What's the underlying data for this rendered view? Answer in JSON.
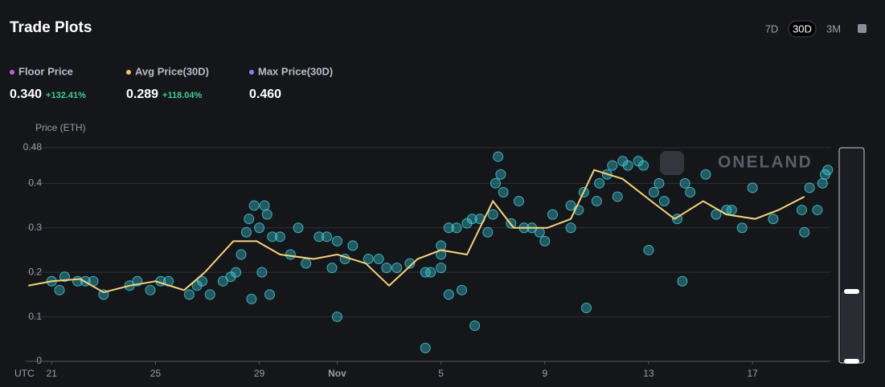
{
  "header": {
    "title": "Trade Plots",
    "ranges": [
      "7D",
      "30D",
      "3M"
    ],
    "selected_range": "30D"
  },
  "stats": [
    {
      "label": "Floor Price",
      "value": "0.340",
      "change": "+132.41%",
      "dot_color": "#c85bd6"
    },
    {
      "label": "Avg Price(30D)",
      "value": "0.289",
      "change": "+118.04%",
      "dot_color": "#f2c46d"
    },
    {
      "label": "Max Price(30D)",
      "value": "0.460",
      "dot_color": "#8b7cf0"
    }
  ],
  "watermark": "ONELAND",
  "chart_data": {
    "type": "scatter",
    "y_axis_label": "Price (ETH)",
    "x_axis_prefix": "UTC",
    "xlim": [
      20,
      51
    ],
    "xticks": [
      21,
      25,
      29,
      {
        "value": 32,
        "label": "Nov"
      },
      {
        "value": 36,
        "label": "5"
      },
      {
        "value": 40,
        "label": "9"
      },
      {
        "value": 44,
        "label": "13"
      },
      {
        "value": 48,
        "label": "17"
      }
    ],
    "ylim": [
      0,
      0.48
    ],
    "yticks": [
      0,
      0.1,
      0.2,
      0.3,
      0.4,
      0.48
    ],
    "grid": true,
    "series": [
      {
        "type": "scatter",
        "color": "#3fd3e3",
        "x": [
          21,
          21.3,
          21.5,
          22,
          22.3,
          22.6,
          23,
          24,
          24.3,
          24.8,
          25.2,
          25.5,
          26.3,
          26.6,
          26.8,
          27.1,
          27.6,
          27.9,
          28.1,
          28.3,
          28.5,
          28.6,
          28.7,
          28.8,
          29,
          29.2,
          29.3,
          29.1,
          29.4,
          29.5,
          29.8,
          30.2,
          30.5,
          30.8,
          31.3,
          31.6,
          31.8,
          32,
          32,
          32.3,
          32.6,
          33.2,
          33.6,
          33.9,
          34.3,
          34.8,
          35.4,
          35.4,
          35.6,
          36,
          36,
          36,
          36.3,
          36.3,
          36.6,
          36.8,
          37,
          37.2,
          37.3,
          37.5,
          37.8,
          38,
          38.1,
          38.2,
          38.3,
          38.4,
          38.7,
          39,
          39.2,
          39.5,
          39.8,
          40,
          40.3,
          41,
          41,
          41.3,
          41.6,
          41.5,
          42,
          42.1,
          42.4,
          42.6,
          42.8,
          43,
          43.2,
          43.6,
          43.8,
          44,
          44.2,
          44.4,
          44.6,
          45.1,
          45.3,
          45.4,
          45.6,
          46.2,
          46.6,
          47,
          47.2,
          47.6,
          48,
          48.8,
          49.9,
          50,
          50.2,
          50.5,
          50.7,
          50.8,
          50.9
        ],
        "values": [
          0.18,
          0.16,
          0.19,
          0.18,
          0.18,
          0.18,
          0.15,
          0.17,
          0.18,
          0.16,
          0.18,
          0.18,
          0.15,
          0.17,
          0.18,
          0.15,
          0.18,
          0.19,
          0.2,
          0.24,
          0.29,
          0.32,
          0.14,
          0.35,
          0.3,
          0.35,
          0.33,
          0.2,
          0.15,
          0.28,
          0.28,
          0.24,
          0.3,
          0.22,
          0.28,
          0.28,
          0.21,
          0.27,
          0.1,
          0.23,
          0.26,
          0.23,
          0.23,
          0.21,
          0.21,
          0.22,
          0.2,
          0.03,
          0.2,
          0.26,
          0.21,
          0.24,
          0.3,
          0.15,
          0.3,
          0.16,
          0.31,
          0.32,
          0.08,
          0.32,
          0.29,
          0.33,
          0.4,
          0.46,
          0.42,
          0.38,
          0.31,
          0.36,
          0.3,
          0.3,
          0.29,
          0.27,
          0.33,
          0.3,
          0.35,
          0.34,
          0.12,
          0.38,
          0.36,
          0.4,
          0.42,
          0.44,
          0.37,
          0.45,
          0.44,
          0.45,
          0.44,
          0.25,
          0.38,
          0.4,
          0.36,
          0.32,
          0.18,
          0.4,
          0.38,
          0.42,
          0.33,
          0.34,
          0.34,
          0.3,
          0.39,
          0.32,
          0.34,
          0.29,
          0.39,
          0.34,
          0.4,
          0.42,
          0.43
        ]
      },
      {
        "type": "line",
        "color": "#f3d27a",
        "x": [
          20.1,
          21,
          22.1,
          23,
          24,
          25,
          26.1,
          26.9,
          28,
          28.9,
          29.8,
          31.1,
          32,
          33.1,
          34,
          35.1,
          36,
          37,
          38,
          38.8,
          40.1,
          41,
          41.9,
          43,
          44.1,
          45,
          46.1,
          47,
          48.1,
          49,
          50
        ],
        "values": [
          0.17,
          0.18,
          0.185,
          0.155,
          0.17,
          0.18,
          0.16,
          0.2,
          0.27,
          0.27,
          0.24,
          0.23,
          0.24,
          0.22,
          0.17,
          0.23,
          0.25,
          0.24,
          0.36,
          0.3,
          0.3,
          0.32,
          0.43,
          0.41,
          0.36,
          0.32,
          0.36,
          0.33,
          0.32,
          0.34,
          0.37
        ]
      }
    ]
  }
}
